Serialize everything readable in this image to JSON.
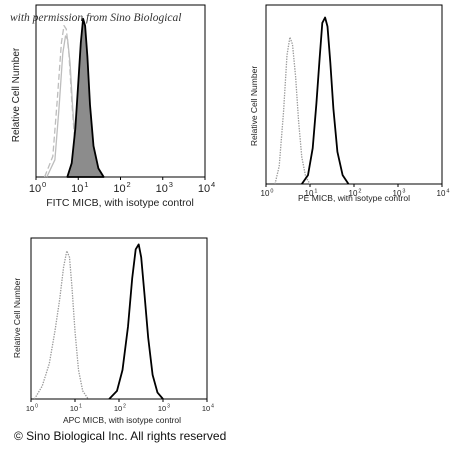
{
  "header": {
    "permission_note": "with permission from Sino Biological"
  },
  "footer": {
    "copyright": "© Sino Biological Inc. All rights reserved"
  },
  "chart_data": [
    {
      "type": "area",
      "xlabel": "FITC MICB,  with isotype control",
      "ylabel": "Relative Cell Number",
      "xscale": "log",
      "xlim": [
        1,
        10000
      ],
      "ylim": [
        0,
        1
      ],
      "xticks": [
        "10",
        "10",
        "10",
        "10",
        "10"
      ],
      "xtick_exp": [
        "0",
        "1",
        "2",
        "3",
        "4"
      ],
      "series": [
        {
          "role": "isotype",
          "style": "dashed",
          "color": "#bdbdbd",
          "x": [
            1.6,
            2.5,
            3.2,
            4.0,
            4.6,
            5.2,
            6.0,
            7.0,
            8.3,
            10.5,
            14
          ],
          "y": [
            0.0,
            0.12,
            0.45,
            0.78,
            0.88,
            0.86,
            0.72,
            0.45,
            0.2,
            0.05,
            0.0
          ]
        },
        {
          "role": "isotype",
          "style": "solid",
          "color": "#bdbdbd",
          "x": [
            1.8,
            2.8,
            3.5,
            4.3,
            5.0,
            5.6,
            6.4,
            7.4,
            8.8,
            11,
            15
          ],
          "y": [
            0.0,
            0.1,
            0.4,
            0.72,
            0.82,
            0.8,
            0.66,
            0.4,
            0.17,
            0.04,
            0.0
          ]
        },
        {
          "role": "MICB",
          "style": "filled",
          "color": "#000000",
          "fill": "#8c8c8c",
          "x": [
            5.5,
            7.0,
            8.5,
            10,
            11.5,
            13.0,
            14.5,
            16.5,
            19,
            23,
            30,
            40
          ],
          "y": [
            0.0,
            0.08,
            0.28,
            0.55,
            0.78,
            0.92,
            0.88,
            0.7,
            0.42,
            0.18,
            0.05,
            0.0
          ]
        }
      ]
    },
    {
      "type": "line",
      "xlabel": "PE  MICB,  with isotype control",
      "ylabel": "Relative Cell Number",
      "xscale": "log",
      "xlim": [
        1,
        10000
      ],
      "ylim": [
        0,
        1
      ],
      "xticks": [
        "10",
        "10",
        "10",
        "10",
        "10"
      ],
      "xtick_exp": [
        "0",
        "1",
        "2",
        "3",
        "4"
      ],
      "series": [
        {
          "role": "isotype",
          "style": "dotted",
          "color": "#9a9a9a",
          "x": [
            1.6,
            2.0,
            2.5,
            3.0,
            3.5,
            4.0,
            4.7,
            5.5,
            6.5,
            8,
            10
          ],
          "y": [
            0.0,
            0.1,
            0.4,
            0.72,
            0.82,
            0.78,
            0.6,
            0.35,
            0.15,
            0.04,
            0.0
          ]
        },
        {
          "role": "MICB",
          "style": "solid",
          "color": "#000000",
          "x": [
            6.5,
            9,
            11.5,
            14,
            16.5,
            19,
            22,
            25,
            29,
            34,
            42,
            55,
            75
          ],
          "y": [
            0.0,
            0.05,
            0.2,
            0.45,
            0.7,
            0.9,
            0.93,
            0.88,
            0.68,
            0.42,
            0.18,
            0.05,
            0.0
          ]
        }
      ]
    },
    {
      "type": "line",
      "xlabel": "APC MICB,  with isotype control",
      "ylabel": "Relative Cell Number",
      "xscale": "log",
      "xlim": [
        1,
        10000
      ],
      "ylim": [
        0,
        1
      ],
      "xticks": [
        "10",
        "10",
        "10",
        "10",
        "10"
      ],
      "xtick_exp": [
        "0",
        "1",
        "2",
        "3",
        "4"
      ],
      "series": [
        {
          "role": "isotype",
          "style": "dotted",
          "color": "#9a9a9a",
          "x": [
            1.2,
            1.8,
            2.6,
            3.5,
            4.5,
            5.5,
            6.5,
            7.5,
            8.5,
            10,
            12,
            15,
            20
          ],
          "y": [
            0.0,
            0.08,
            0.22,
            0.42,
            0.62,
            0.82,
            0.92,
            0.88,
            0.7,
            0.42,
            0.18,
            0.05,
            0.0
          ]
        },
        {
          "role": "MICB",
          "style": "solid",
          "color": "#000000",
          "x": [
            60,
            90,
            120,
            160,
            200,
            240,
            280,
            320,
            380,
            460,
            580,
            750,
            1000
          ],
          "y": [
            0.0,
            0.05,
            0.18,
            0.45,
            0.75,
            0.93,
            0.96,
            0.88,
            0.65,
            0.38,
            0.15,
            0.04,
            0.0
          ]
        }
      ]
    }
  ]
}
